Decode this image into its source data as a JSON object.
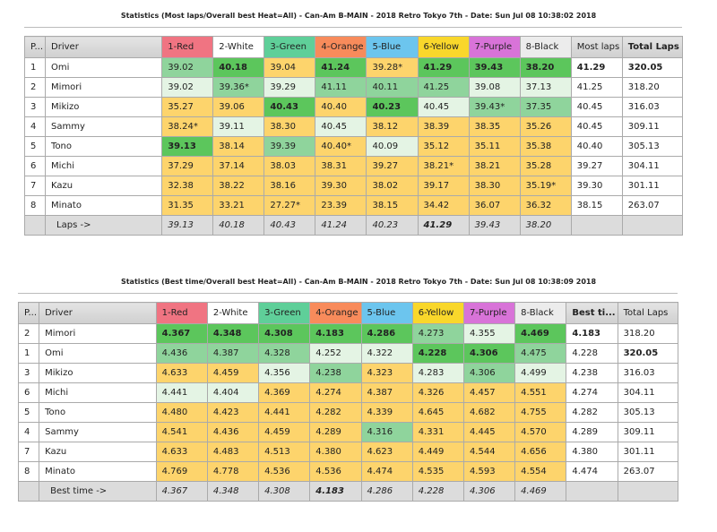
{
  "colors": {
    "1-Red": "#f07482",
    "2-White": "#ffffff",
    "3-Green": "#5fcf99",
    "4-Orange": "#f88b5b",
    "5-Blue": "#6cc5ee",
    "6-Yellow": "#f9d72b",
    "7-Purple": "#d873d8",
    "8-Black": "#ececec"
  },
  "tables": [
    {
      "title": "Statistics (Most laps/Overall best Heat=All) - Can-Am B-MAIN - 2018 Retro Tokyo 7th - Date: Sun Jul 08 10:38:02 2018",
      "headers": [
        "P...",
        "Driver",
        "1-Red",
        "2-White",
        "3-Green",
        "4-Orange",
        "5-Blue",
        "6-Yellow",
        "7-Purple",
        "8-Black",
        "Most laps",
        "Total Laps"
      ],
      "bold_header": [
        false,
        false,
        false,
        false,
        false,
        false,
        false,
        false,
        false,
        false,
        false,
        true
      ],
      "rows": [
        {
          "p": "1",
          "driver": "Omi",
          "cells": [
            [
              "39.02",
              "g2"
            ],
            [
              "40.18",
              "g1"
            ],
            [
              "39.04",
              "y"
            ],
            [
              "41.24",
              "g1"
            ],
            [
              "39.28*",
              "y"
            ],
            [
              "41.29",
              "g1"
            ],
            [
              "39.43",
              "g1"
            ],
            [
              "38.20",
              "g1"
            ]
          ],
          "best": "41.29",
          "best_bold": true,
          "total": "320.05",
          "total_bold": true
        },
        {
          "p": "2",
          "driver": "Mimori",
          "cells": [
            [
              "39.02",
              "g3"
            ],
            [
              "39.36*",
              "g2"
            ],
            [
              "39.29",
              "g3"
            ],
            [
              "41.11",
              "g2"
            ],
            [
              "40.11",
              "g2"
            ],
            [
              "41.25",
              "g2"
            ],
            [
              "39.08",
              "g3"
            ],
            [
              "37.13",
              "g3"
            ]
          ],
          "best": "41.25",
          "total": "318.20"
        },
        {
          "p": "3",
          "driver": "Mikizo",
          "cells": [
            [
              "35.27",
              "y"
            ],
            [
              "39.06",
              "y"
            ],
            [
              "40.43",
              "g1"
            ],
            [
              "40.40",
              "y"
            ],
            [
              "40.23",
              "g1"
            ],
            [
              "40.45",
              "g3"
            ],
            [
              "39.43*",
              "g2"
            ],
            [
              "37.35",
              "g2"
            ]
          ],
          "best": "40.45",
          "total": "316.03"
        },
        {
          "p": "4",
          "driver": "Sammy",
          "cells": [
            [
              "38.24*",
              "y"
            ],
            [
              "39.11",
              "g3"
            ],
            [
              "38.30",
              "y"
            ],
            [
              "40.45",
              "g3"
            ],
            [
              "38.12",
              "y"
            ],
            [
              "38.39",
              "y"
            ],
            [
              "38.35",
              "y"
            ],
            [
              "35.26",
              "y"
            ]
          ],
          "best": "40.45",
          "total": "309.11"
        },
        {
          "p": "5",
          "driver": "Tono",
          "cells": [
            [
              "39.13",
              "g1"
            ],
            [
              "38.14",
              "y"
            ],
            [
              "39.39",
              "g2"
            ],
            [
              "40.40*",
              "y"
            ],
            [
              "40.09",
              "g3"
            ],
            [
              "35.12",
              "y"
            ],
            [
              "35.11",
              "y"
            ],
            [
              "35.38",
              "y"
            ]
          ],
          "best": "40.40",
          "total": "305.13"
        },
        {
          "p": "6",
          "driver": "Michi",
          "cells": [
            [
              "37.29",
              "y"
            ],
            [
              "37.14",
              "y"
            ],
            [
              "38.03",
              "y"
            ],
            [
              "38.31",
              "y"
            ],
            [
              "39.27",
              "y"
            ],
            [
              "38.21*",
              "y"
            ],
            [
              "38.21",
              "y"
            ],
            [
              "35.28",
              "y"
            ]
          ],
          "best": "39.27",
          "total": "304.11"
        },
        {
          "p": "7",
          "driver": "Kazu",
          "cells": [
            [
              "32.38",
              "y"
            ],
            [
              "38.22",
              "y"
            ],
            [
              "38.16",
              "y"
            ],
            [
              "39.30",
              "y"
            ],
            [
              "38.02",
              "y"
            ],
            [
              "39.17",
              "y"
            ],
            [
              "38.30",
              "y"
            ],
            [
              "35.19*",
              "y"
            ]
          ],
          "best": "39.30",
          "total": "301.11"
        },
        {
          "p": "8",
          "driver": "Minato",
          "cells": [
            [
              "31.35",
              "y"
            ],
            [
              "33.21",
              "y"
            ],
            [
              "27.27*",
              "y"
            ],
            [
              "23.39",
              "y"
            ],
            [
              "38.15",
              "y"
            ],
            [
              "34.42",
              "y"
            ],
            [
              "36.07",
              "y"
            ],
            [
              "36.32",
              "y"
            ]
          ],
          "best": "38.15",
          "total": "263.07"
        }
      ],
      "footer": {
        "label": "Laps ->",
        "values": [
          "39.13",
          "40.18",
          "40.43",
          "41.24",
          "40.23",
          "41.29",
          "39.43",
          "38.20"
        ],
        "bold_index": 5
      }
    },
    {
      "title": "Statistics (Best time/Overall best Heat=All) - Can-Am B-MAIN - 2018 Retro Tokyo 7th - Date: Sun Jul 08 10:38:09 2018",
      "headers": [
        "P...",
        "Driver",
        "1-Red",
        "2-White",
        "3-Green",
        "4-Orange",
        "5-Blue",
        "6-Yellow",
        "7-Purple",
        "8-Black",
        "Best ti...",
        "Total Laps"
      ],
      "bold_header": [
        false,
        false,
        false,
        false,
        false,
        false,
        false,
        false,
        false,
        false,
        true,
        false
      ],
      "rows": [
        {
          "p": "2",
          "driver": "Mimori",
          "cells": [
            [
              "4.367",
              "g1"
            ],
            [
              "4.348",
              "g1"
            ],
            [
              "4.308",
              "g1"
            ],
            [
              "4.183",
              "g1"
            ],
            [
              "4.286",
              "g1"
            ],
            [
              "4.273",
              "g2"
            ],
            [
              "4.355",
              "g3"
            ],
            [
              "4.469",
              "g1"
            ]
          ],
          "best": "4.183",
          "best_bold": true,
          "total": "318.20"
        },
        {
          "p": "1",
          "driver": "Omi",
          "cells": [
            [
              "4.436",
              "g2"
            ],
            [
              "4.387",
              "g2"
            ],
            [
              "4.328",
              "g2"
            ],
            [
              "4.252",
              "g3"
            ],
            [
              "4.322",
              "g3"
            ],
            [
              "4.228",
              "g1"
            ],
            [
              "4.306",
              "g1"
            ],
            [
              "4.475",
              "g2"
            ]
          ],
          "best": "4.228",
          "total": "320.05",
          "total_bold": true
        },
        {
          "p": "3",
          "driver": "Mikizo",
          "cells": [
            [
              "4.633",
              "y"
            ],
            [
              "4.459",
              "y"
            ],
            [
              "4.356",
              "g3"
            ],
            [
              "4.238",
              "g2"
            ],
            [
              "4.323",
              "y"
            ],
            [
              "4.283",
              "g3"
            ],
            [
              "4.306",
              "g2"
            ],
            [
              "4.499",
              "g3"
            ]
          ],
          "best": "4.238",
          "total": "316.03"
        },
        {
          "p": "6",
          "driver": "Michi",
          "cells": [
            [
              "4.441",
              "g3"
            ],
            [
              "4.404",
              "g3"
            ],
            [
              "4.369",
              "y"
            ],
            [
              "4.274",
              "y"
            ],
            [
              "4.387",
              "y"
            ],
            [
              "4.326",
              "y"
            ],
            [
              "4.457",
              "y"
            ],
            [
              "4.551",
              "y"
            ]
          ],
          "best": "4.274",
          "total": "304.11"
        },
        {
          "p": "5",
          "driver": "Tono",
          "cells": [
            [
              "4.480",
              "y"
            ],
            [
              "4.423",
              "y"
            ],
            [
              "4.441",
              "y"
            ],
            [
              "4.282",
              "y"
            ],
            [
              "4.339",
              "y"
            ],
            [
              "4.645",
              "y"
            ],
            [
              "4.682",
              "y"
            ],
            [
              "4.755",
              "y"
            ]
          ],
          "best": "4.282",
          "total": "305.13"
        },
        {
          "p": "4",
          "driver": "Sammy",
          "cells": [
            [
              "4.541",
              "y"
            ],
            [
              "4.436",
              "y"
            ],
            [
              "4.459",
              "y"
            ],
            [
              "4.289",
              "y"
            ],
            [
              "4.316",
              "g2"
            ],
            [
              "4.331",
              "y"
            ],
            [
              "4.445",
              "y"
            ],
            [
              "4.570",
              "y"
            ]
          ],
          "best": "4.289",
          "total": "309.11"
        },
        {
          "p": "7",
          "driver": "Kazu",
          "cells": [
            [
              "4.633",
              "y"
            ],
            [
              "4.483",
              "y"
            ],
            [
              "4.513",
              "y"
            ],
            [
              "4.380",
              "y"
            ],
            [
              "4.623",
              "y"
            ],
            [
              "4.449",
              "y"
            ],
            [
              "4.544",
              "y"
            ],
            [
              "4.656",
              "y"
            ]
          ],
          "best": "4.380",
          "total": "301.11"
        },
        {
          "p": "8",
          "driver": "Minato",
          "cells": [
            [
              "4.769",
              "y"
            ],
            [
              "4.778",
              "y"
            ],
            [
              "4.536",
              "y"
            ],
            [
              "4.536",
              "y"
            ],
            [
              "4.474",
              "y"
            ],
            [
              "4.535",
              "y"
            ],
            [
              "4.593",
              "y"
            ],
            [
              "4.554",
              "y"
            ]
          ],
          "best": "4.474",
          "total": "263.07"
        }
      ],
      "footer": {
        "label": "Best time ->",
        "values": [
          "4.367",
          "4.348",
          "4.308",
          "4.183",
          "4.286",
          "4.228",
          "4.306",
          "4.469"
        ],
        "bold_index": 3
      }
    }
  ]
}
